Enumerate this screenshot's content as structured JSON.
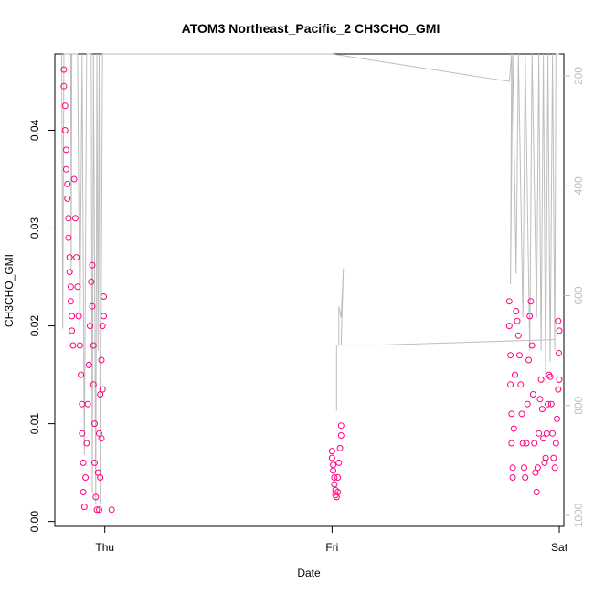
{
  "chart_data": {
    "type": "scatter",
    "title": "ATOM3 Northeast_Pacific_2 CH3CHO_GMI",
    "xlabel": "Date",
    "ylabel": "CH3CHO_GMI",
    "x_ticks": [
      "Thu",
      "Fri",
      "Sat"
    ],
    "y_ticks": [
      "0.00",
      "0.01",
      "0.02",
      "0.03",
      "0.04"
    ],
    "y_right_ticks": [
      "200",
      "400",
      "600",
      "800",
      "1000"
    ],
    "y_right_range": [
      1020,
      160
    ],
    "xlim_days": [
      -0.22,
      2.02
    ],
    "ylim": [
      -0.0005,
      0.0478
    ],
    "grid": false,
    "legend": "none",
    "marker_color": "#ff0080",
    "pressure_line_color": "#bebebe",
    "series": [
      {
        "points": [
          [
            -0.18,
            0.0462
          ],
          [
            -0.18,
            0.0445
          ],
          [
            -0.175,
            0.0425
          ],
          [
            -0.175,
            0.04
          ],
          [
            -0.17,
            0.038
          ],
          [
            -0.17,
            0.036
          ],
          [
            -0.165,
            0.0345
          ],
          [
            -0.165,
            0.033
          ],
          [
            -0.16,
            0.031
          ],
          [
            -0.16,
            0.029
          ],
          [
            -0.155,
            0.027
          ],
          [
            -0.155,
            0.0255
          ],
          [
            -0.15,
            0.024
          ],
          [
            -0.15,
            0.0225
          ],
          [
            -0.145,
            0.021
          ],
          [
            -0.145,
            0.0195
          ],
          [
            -0.14,
            0.018
          ],
          [
            -0.135,
            0.035
          ],
          [
            -0.13,
            0.031
          ],
          [
            -0.125,
            0.027
          ],
          [
            -0.12,
            0.024
          ],
          [
            -0.115,
            0.021
          ],
          [
            -0.11,
            0.018
          ],
          [
            -0.105,
            0.015
          ],
          [
            -0.1,
            0.012
          ],
          [
            -0.1,
            0.009
          ],
          [
            -0.095,
            0.006
          ],
          [
            -0.095,
            0.003
          ],
          [
            -0.09,
            0.0015
          ],
          [
            -0.085,
            0.0045
          ],
          [
            -0.08,
            0.008
          ],
          [
            -0.075,
            0.012
          ],
          [
            -0.07,
            0.016
          ],
          [
            -0.065,
            0.02
          ],
          [
            -0.06,
            0.0245
          ],
          [
            -0.055,
            0.0262
          ],
          [
            -0.055,
            0.022
          ],
          [
            -0.05,
            0.018
          ],
          [
            -0.05,
            0.014
          ],
          [
            -0.045,
            0.01
          ],
          [
            -0.045,
            0.006
          ],
          [
            -0.04,
            0.0025
          ],
          [
            -0.035,
            0.0012
          ],
          [
            -0.03,
            0.005
          ],
          [
            -0.025,
            0.009
          ],
          [
            -0.02,
            0.013
          ],
          [
            -0.015,
            0.0165
          ],
          [
            -0.01,
            0.02
          ],
          [
            -0.005,
            0.023
          ],
          [
            -0.005,
            0.021
          ],
          [
            -0.01,
            0.0135
          ],
          [
            -0.015,
            0.0085
          ],
          [
            -0.02,
            0.0045
          ],
          [
            -0.025,
            0.0012
          ],
          [
            0.03,
            0.0012
          ]
        ]
      },
      {
        "points": [
          [
            1.0,
            0.0072
          ],
          [
            1.0,
            0.0065
          ],
          [
            1.005,
            0.0058
          ],
          [
            1.005,
            0.0052
          ],
          [
            1.01,
            0.0045
          ],
          [
            1.01,
            0.0038
          ],
          [
            1.015,
            0.0032
          ],
          [
            1.015,
            0.0027
          ],
          [
            1.02,
            0.0025
          ],
          [
            1.025,
            0.003
          ],
          [
            1.025,
            0.0045
          ],
          [
            1.03,
            0.006
          ],
          [
            1.035,
            0.0075
          ],
          [
            1.04,
            0.0088
          ],
          [
            1.04,
            0.0098
          ]
        ]
      },
      {
        "points": [
          [
            1.78,
            0.0225
          ],
          [
            1.78,
            0.02
          ],
          [
            1.785,
            0.017
          ],
          [
            1.785,
            0.014
          ],
          [
            1.79,
            0.011
          ],
          [
            1.79,
            0.008
          ],
          [
            1.795,
            0.0055
          ],
          [
            1.795,
            0.0045
          ],
          [
            1.8,
            0.0095
          ],
          [
            1.805,
            0.015
          ],
          [
            1.81,
            0.0215
          ],
          [
            1.815,
            0.0205
          ],
          [
            1.82,
            0.019
          ],
          [
            1.825,
            0.017
          ],
          [
            1.83,
            0.014
          ],
          [
            1.835,
            0.011
          ],
          [
            1.84,
            0.008
          ],
          [
            1.845,
            0.0055
          ],
          [
            1.85,
            0.0045
          ],
          [
            1.855,
            0.008
          ],
          [
            1.86,
            0.012
          ],
          [
            1.865,
            0.0165
          ],
          [
            1.87,
            0.021
          ],
          [
            1.875,
            0.0225
          ],
          [
            1.88,
            0.018
          ],
          [
            1.885,
            0.013
          ],
          [
            1.89,
            0.008
          ],
          [
            1.895,
            0.005
          ],
          [
            1.9,
            0.003
          ],
          [
            1.905,
            0.0055
          ],
          [
            1.91,
            0.009
          ],
          [
            1.915,
            0.0125
          ],
          [
            1.92,
            0.0145
          ],
          [
            1.925,
            0.0115
          ],
          [
            1.93,
            0.0085
          ],
          [
            1.935,
            0.006
          ],
          [
            1.94,
            0.0065
          ],
          [
            1.945,
            0.009
          ],
          [
            1.95,
            0.012
          ],
          [
            1.955,
            0.015
          ],
          [
            1.96,
            0.0148
          ],
          [
            1.965,
            0.012
          ],
          [
            1.97,
            0.009
          ],
          [
            1.975,
            0.0065
          ],
          [
            1.98,
            0.0055
          ],
          [
            1.985,
            0.008
          ],
          [
            1.99,
            0.0105
          ],
          [
            1.995,
            0.0135
          ],
          [
            2.0,
            0.0145
          ],
          [
            2.0,
            0.0195
          ],
          [
            1.995,
            0.0205
          ],
          [
            1.998,
            0.0172
          ]
        ]
      }
    ],
    "pressure_line": [
      [
        -0.19,
        150
      ],
      [
        -0.185,
        660
      ],
      [
        -0.18,
        150
      ],
      [
        -0.15,
        150
      ],
      [
        -0.148,
        560
      ],
      [
        -0.145,
        150
      ],
      [
        -0.12,
        150
      ],
      [
        -0.11,
        680
      ],
      [
        -0.1,
        150
      ],
      [
        -0.09,
        890
      ],
      [
        -0.08,
        150
      ],
      [
        -0.06,
        150
      ],
      [
        -0.055,
        960
      ],
      [
        -0.05,
        150
      ],
      [
        -0.04,
        980
      ],
      [
        -0.035,
        150
      ],
      [
        -0.03,
        700
      ],
      [
        -0.025,
        150
      ],
      [
        -0.02,
        980
      ],
      [
        -0.01,
        150
      ],
      [
        0.0,
        150
      ],
      [
        0.9,
        150
      ],
      [
        1.0,
        160
      ],
      [
        1.78,
        210
      ],
      [
        1.79,
        150
      ],
      [
        1.785,
        580
      ],
      [
        1.795,
        160
      ],
      [
        1.81,
        560
      ],
      [
        1.82,
        150
      ],
      [
        1.84,
        640
      ],
      [
        1.85,
        150
      ],
      [
        1.87,
        700
      ],
      [
        1.88,
        150
      ],
      [
        1.9,
        640
      ],
      [
        1.91,
        150
      ],
      [
        1.92,
        700
      ],
      [
        1.93,
        150
      ],
      [
        1.94,
        760
      ],
      [
        1.95,
        150
      ],
      [
        1.96,
        720
      ],
      [
        1.97,
        150
      ],
      [
        1.98,
        700
      ],
      [
        1.985,
        150
      ],
      [
        2.0,
        150
      ]
    ],
    "pressure_segment_fri": [
      [
        1.02,
        810
      ],
      [
        1.02,
        690
      ],
      [
        1.03,
        690
      ],
      [
        1.03,
        620
      ],
      [
        1.04,
        640
      ],
      [
        1.05,
        550
      ],
      [
        1.04,
        690
      ],
      [
        1.2,
        690
      ],
      [
        1.98,
        680
      ]
    ]
  }
}
